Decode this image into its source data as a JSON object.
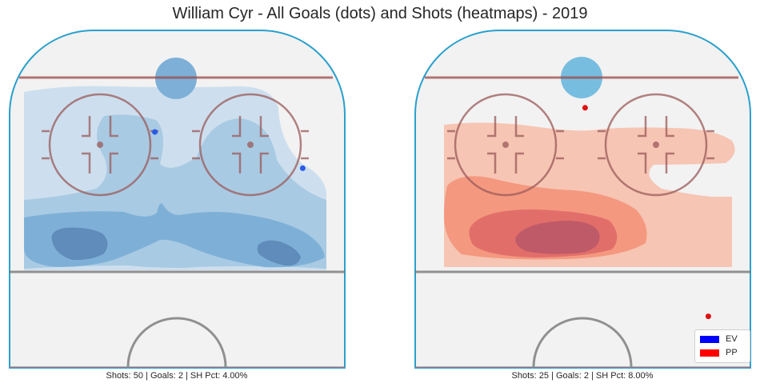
{
  "chart_data": {
    "type": "heatmap",
    "title": "William Cyr - All Goals (dots) and Shots (heatmaps) - 2019",
    "legend": {
      "placement": "bottom-right",
      "entries": [
        {
          "label": "EV",
          "color": "#0000ff"
        },
        {
          "label": "PP",
          "color": "#ff0000"
        }
      ]
    },
    "panels": [
      {
        "strength": "EV",
        "caption": "Shots: 50 | Goals: 2 | SH Pct: 4.00%",
        "shots": 50,
        "goals": 2,
        "sh_pct": "4.00%",
        "colormap": "Blues",
        "goal_color": "#2b59e8",
        "goal_points": [
          {
            "x": 71,
            "y": -6
          },
          {
            "x": 59,
            "y": 36
          }
        ]
      },
      {
        "strength": "PP",
        "caption": "Shots: 25 | Goals: 2 | SH Pct: 8.00%",
        "shots": 25,
        "goals": 2,
        "sh_pct": "8.00%",
        "colormap": "Reds",
        "goal_color": "#e01010",
        "goal_points": [
          {
            "x": 10,
            "y": 36
          },
          {
            "x": 79,
            "y": 1
          }
        ]
      }
    ]
  }
}
